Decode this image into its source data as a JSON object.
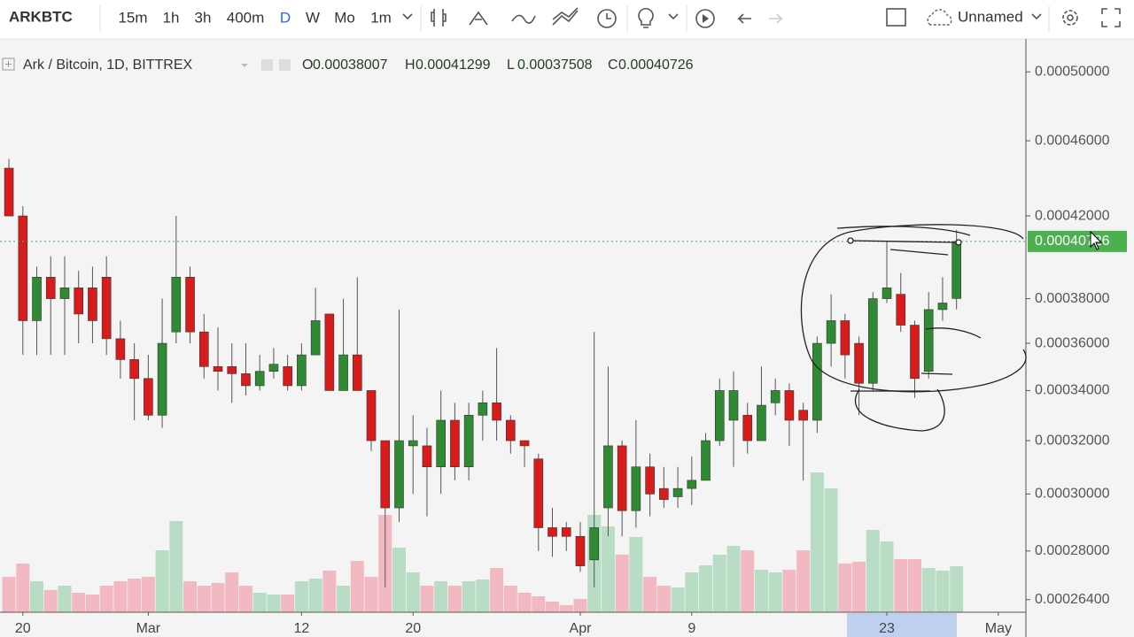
{
  "toolbar": {
    "symbol": "ARKBTC",
    "intervals": [
      "15m",
      "1h",
      "3h",
      "400m",
      "D",
      "W",
      "Mo",
      "1m"
    ],
    "active_interval": "D",
    "layout_name": "Unnamed"
  },
  "chart_data": {
    "type": "candlestick",
    "title": "Ark / Bitcoin, 1D, BITTREX",
    "ohlc_legend": [
      {
        "label": "O",
        "value": "0.00038007"
      },
      {
        "label": "H",
        "value": "0.00041299"
      },
      {
        "label": "L",
        "value": "0.00037508"
      },
      {
        "label": "C",
        "value": "0.00040726"
      }
    ],
    "log_scale": true,
    "xlim": [
      -0.64,
      72.98
    ],
    "xticks": [
      {
        "value": 1,
        "label": "20"
      },
      {
        "value": 10,
        "label": "Mar"
      },
      {
        "value": 21,
        "label": "12"
      },
      {
        "value": 29,
        "label": "20"
      },
      {
        "value": 41,
        "label": "Apr"
      },
      {
        "value": 49,
        "label": "9"
      },
      {
        "value": 63,
        "label": "23"
      },
      {
        "value": 71,
        "label": "May"
      }
    ],
    "ylim": [
      0.00026,
      0.000517
    ],
    "yticks": [
      {
        "value": 0.0005,
        "label": "0.00050000"
      },
      {
        "value": 0.00046,
        "label": "0.00046000"
      },
      {
        "value": 0.00042,
        "label": "0.00042000"
      },
      {
        "value": 0.00038,
        "label": "0.00038000"
      },
      {
        "value": 0.00036,
        "label": "0.00036000"
      },
      {
        "value": 0.00034,
        "label": "0.00034000"
      },
      {
        "value": 0.00032,
        "label": "0.00032000"
      },
      {
        "value": 0.0003,
        "label": "0.00030000"
      },
      {
        "value": 0.00028,
        "label": "0.00028000"
      },
      {
        "value": 0.000264,
        "label": "0.00026400"
      }
    ],
    "last_price": {
      "value": 0.00040726,
      "label": "0.00040726",
      "color": "#4caf50"
    },
    "up_color": "#2f8a33",
    "down_color": "#d81b1b",
    "up_volume_color": "#b9dcc4",
    "down_volume_color": "#f2b9c2",
    "open": [
      0.000445,
      0.00042,
      0.00037,
      0.00039,
      0.00038,
      0.000385,
      0.000385,
      0.00039,
      0.000362,
      0.000353,
      0.000345,
      0.00033,
      0.000365,
      0.00039,
      0.000365,
      0.00035,
      0.00035,
      0.000347,
      0.000342,
      0.000348,
      0.00035,
      0.000342,
      0.000355,
      0.000373,
      0.00034,
      0.000355,
      0.00034,
      0.00032,
      0.000295,
      0.000318,
      0.000318,
      0.00031,
      0.000328,
      0.00031,
      0.00033,
      0.000335,
      0.000328,
      0.00032,
      0.000313,
      0.000288,
      0.000288,
      0.000285,
      0.000277,
      0.000295,
      0.000318,
      0.000294,
      0.00031,
      0.000302,
      0.000299,
      0.000302,
      0.000305,
      0.00032,
      0.000328,
      0.00033,
      0.00032,
      0.000335,
      0.00034,
      0.000332,
      0.000328,
      0.00036,
      0.00037,
      0.00036,
      0.000343,
      0.00038,
      0.000382,
      0.000368,
      0.000348,
      0.000375,
      0.00038007
    ],
    "high": [
      0.00045,
      0.000425,
      0.000395,
      0.0004,
      0.0004,
      0.000393,
      0.000395,
      0.0004,
      0.00037,
      0.00036,
      0.000355,
      0.00038,
      0.00042,
      0.000395,
      0.000373,
      0.000367,
      0.00036,
      0.00036,
      0.000355,
      0.000358,
      0.000355,
      0.00036,
      0.000385,
      0.000373,
      0.00038,
      0.00039,
      0.00034,
      0.00032,
      0.000375,
      0.00033,
      0.000325,
      0.00034,
      0.000335,
      0.000335,
      0.00034,
      0.000358,
      0.00033,
      0.00032,
      0.000315,
      0.000295,
      0.00029,
      0.00029,
      0.000365,
      0.00035,
      0.00032,
      0.000328,
      0.000315,
      0.00031,
      0.00031,
      0.000314,
      0.000323,
      0.000345,
      0.000348,
      0.000335,
      0.00035,
      0.000345,
      0.000343,
      0.000335,
      0.000363,
      0.000382,
      0.000373,
      0.000363,
      0.000383,
      0.000407,
      0.000392,
      0.00037,
      0.000383,
      0.00039,
      0.00041299
    ],
    "low": [
      0.00042,
      0.000355,
      0.000355,
      0.000355,
      0.000355,
      0.00036,
      0.00036,
      0.000355,
      0.000345,
      0.000328,
      0.000328,
      0.000325,
      0.00036,
      0.00036,
      0.000345,
      0.00034,
      0.000335,
      0.000338,
      0.00034,
      0.000345,
      0.00034,
      0.00034,
      0.000355,
      0.00034,
      0.00034,
      0.00034,
      0.000316,
      0.000268,
      0.00029,
      0.0003,
      0.000292,
      0.0003,
      0.000305,
      0.000305,
      0.00032,
      0.00032,
      0.000315,
      0.00031,
      0.00028,
      0.000278,
      0.00028,
      0.000273,
      0.000268,
      0.000285,
      0.000285,
      0.000288,
      0.000292,
      0.000295,
      0.000295,
      0.000296,
      0.000305,
      0.000318,
      0.00031,
      0.000315,
      0.00032,
      0.00033,
      0.000318,
      0.000305,
      0.000323,
      0.00035,
      0.000345,
      0.00033,
      0.00034,
      0.000378,
      0.000365,
      0.000337,
      0.000345,
      0.00037,
      0.00037508
    ],
    "close": [
      0.00042,
      0.00037,
      0.00039,
      0.00038,
      0.000385,
      0.000373,
      0.00037,
      0.000362,
      0.000353,
      0.000345,
      0.00033,
      0.00036,
      0.00039,
      0.000365,
      0.00035,
      0.000348,
      0.000347,
      0.000342,
      0.000348,
      0.000351,
      0.000342,
      0.000355,
      0.00037,
      0.00034,
      0.000355,
      0.00034,
      0.00032,
      0.000295,
      0.00032,
      0.00032,
      0.00031,
      0.000328,
      0.00031,
      0.00033,
      0.000335,
      0.000328,
      0.00032,
      0.000318,
      0.000288,
      0.000285,
      0.000285,
      0.000275,
      0.000288,
      0.000318,
      0.000294,
      0.00031,
      0.0003,
      0.000298,
      0.000302,
      0.000305,
      0.00032,
      0.00034,
      0.00034,
      0.00032,
      0.000334,
      0.00034,
      0.000328,
      0.000328,
      0.00036,
      0.00037,
      0.000355,
      0.000343,
      0.00038,
      0.000385,
      0.000368,
      0.000345,
      0.000375,
      0.000378,
      0.00040726
    ],
    "volume_ylim": [
      0,
      200
    ],
    "volume": [
      40,
      55,
      35,
      25,
      30,
      22,
      20,
      30,
      35,
      38,
      40,
      70,
      103,
      35,
      30,
      33,
      45,
      30,
      22,
      20,
      20,
      35,
      38,
      47,
      30,
      58,
      40,
      110,
      73,
      45,
      30,
      35,
      30,
      35,
      37,
      50,
      30,
      22,
      18,
      12,
      8,
      15,
      110,
      97,
      65,
      85,
      40,
      30,
      28,
      45,
      53,
      65,
      75,
      70,
      48,
      45,
      48,
      70,
      158,
      140,
      55,
      57,
      93,
      80,
      60,
      60,
      50,
      47,
      52
    ]
  }
}
